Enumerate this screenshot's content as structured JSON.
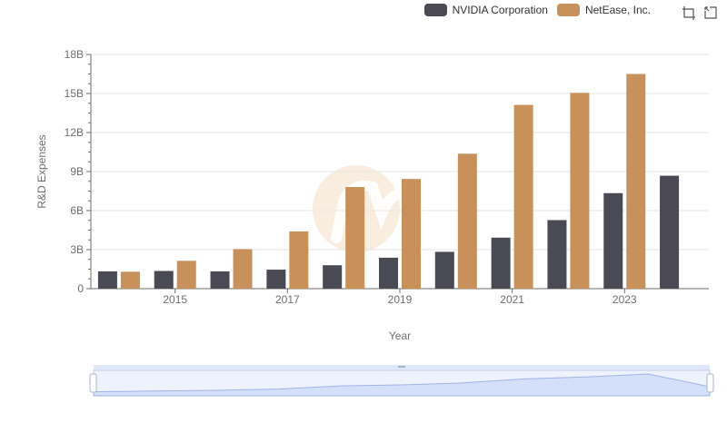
{
  "chart_data": {
    "type": "bar",
    "xlabel": "Year",
    "ylabel": "R&D Expenses",
    "categories": [
      "2014",
      "2015",
      "2016",
      "2017",
      "2018",
      "2019",
      "2020",
      "2021",
      "2022",
      "2023",
      "2024"
    ],
    "x_tick_labels": [
      "2015",
      "2017",
      "2019",
      "2021",
      "2023"
    ],
    "y_ticks": [
      0,
      3,
      6,
      9,
      12,
      15,
      18
    ],
    "y_tick_labels": [
      "0",
      "3B",
      "6B",
      "9B",
      "12B",
      "15B",
      "18B"
    ],
    "y_unit": "billions",
    "ylim": [
      0,
      18
    ],
    "grid": true,
    "legend_position": "top-right",
    "series": [
      {
        "name": "NVIDIA Corporation",
        "color": "#4a4a55",
        "values": [
          1.33,
          1.36,
          1.33,
          1.46,
          1.8,
          2.38,
          2.83,
          3.92,
          5.27,
          7.34,
          8.68
        ]
      },
      {
        "name": "NetEase, Inc.",
        "color": "#c8905a",
        "values": [
          1.3,
          2.14,
          3.04,
          4.4,
          7.81,
          8.43,
          10.37,
          14.12,
          15.05,
          16.5,
          null
        ]
      }
    ]
  },
  "toolbox": {
    "zoom_icon": "zoom-icon",
    "restore_icon": "restore-icon"
  },
  "watermark": {
    "color": "#f5e6d0"
  },
  "data_zoom": {
    "fill": "#dfe7fb",
    "border": "#c5cfe6",
    "handle_color": "#ffffff"
  }
}
